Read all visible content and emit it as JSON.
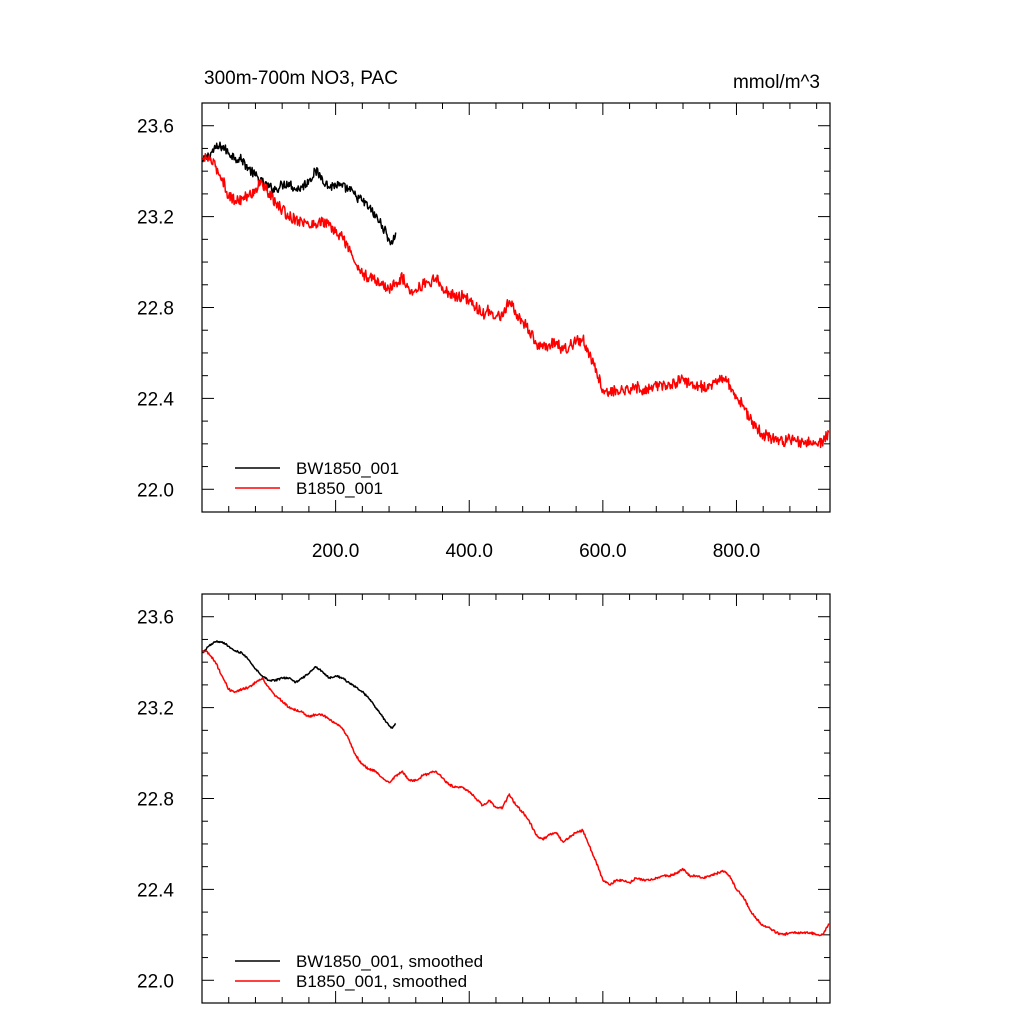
{
  "header": {
    "left_title": "300m-700m NO3, PAC",
    "right_title": "mmol/m^3"
  },
  "chart_data": [
    {
      "type": "line",
      "title": "300m-700m NO3, PAC",
      "units": "mmol/m^3",
      "xlim": [
        0,
        940
      ],
      "ylim": [
        21.9,
        23.7
      ],
      "x_ticks": [
        200,
        400,
        600,
        800
      ],
      "x_tick_labels": [
        "200.0",
        "400.0",
        "600.0",
        "800.0"
      ],
      "y_ticks": [
        22.0,
        22.4,
        22.8,
        23.2,
        23.6
      ],
      "y_tick_labels": [
        "22.0",
        "22.4",
        "22.8",
        "23.2",
        "23.6"
      ],
      "legend_position": "bottom-left",
      "grid": false,
      "series": [
        {
          "name": "BW1850_001",
          "color": "#000000",
          "x": [
            1,
            10,
            20,
            30,
            40,
            50,
            60,
            70,
            80,
            90,
            100,
            110,
            120,
            130,
            140,
            150,
            160,
            170,
            180,
            190,
            200,
            210,
            220,
            230,
            240,
            250,
            260,
            270,
            280,
            285,
            290
          ],
          "y": [
            23.44,
            23.47,
            23.5,
            23.51,
            23.48,
            23.46,
            23.45,
            23.41,
            23.38,
            23.35,
            23.33,
            23.32,
            23.34,
            23.35,
            23.32,
            23.33,
            23.36,
            23.4,
            23.37,
            23.33,
            23.34,
            23.33,
            23.32,
            23.29,
            23.27,
            23.24,
            23.2,
            23.16,
            23.1,
            23.08,
            23.13
          ],
          "noise": 0.022
        },
        {
          "name": "B1850_001",
          "color": "#ff0000",
          "x": [
            1,
            10,
            20,
            30,
            40,
            50,
            60,
            70,
            80,
            90,
            100,
            110,
            120,
            130,
            140,
            150,
            160,
            170,
            180,
            190,
            200,
            210,
            220,
            230,
            240,
            250,
            260,
            270,
            280,
            290,
            300,
            310,
            320,
            330,
            340,
            350,
            360,
            370,
            380,
            390,
            400,
            410,
            420,
            430,
            440,
            450,
            460,
            470,
            480,
            490,
            500,
            510,
            520,
            530,
            540,
            550,
            560,
            570,
            580,
            590,
            600,
            610,
            620,
            630,
            640,
            650,
            660,
            670,
            680,
            690,
            700,
            710,
            720,
            730,
            740,
            750,
            760,
            770,
            780,
            790,
            800,
            810,
            820,
            830,
            840,
            850,
            860,
            870,
            880,
            890,
            900,
            910,
            920,
            930,
            938
          ],
          "y": [
            23.45,
            23.46,
            23.42,
            23.37,
            23.29,
            23.27,
            23.28,
            23.29,
            23.32,
            23.35,
            23.3,
            23.26,
            23.23,
            23.2,
            23.19,
            23.18,
            23.16,
            23.17,
            23.18,
            23.16,
            23.13,
            23.11,
            23.06,
            22.99,
            22.95,
            22.93,
            22.92,
            22.9,
            22.88,
            22.91,
            22.93,
            22.88,
            22.88,
            22.9,
            22.91,
            22.93,
            22.89,
            22.86,
            22.85,
            22.85,
            22.83,
            22.8,
            22.77,
            22.79,
            22.76,
            22.76,
            22.83,
            22.77,
            22.74,
            22.7,
            22.64,
            22.62,
            22.64,
            22.65,
            22.61,
            22.63,
            22.65,
            22.66,
            22.59,
            22.53,
            22.44,
            22.42,
            22.44,
            22.44,
            22.43,
            22.45,
            22.44,
            22.44,
            22.45,
            22.46,
            22.46,
            22.47,
            22.49,
            22.46,
            22.46,
            22.45,
            22.46,
            22.47,
            22.49,
            22.46,
            22.4,
            22.37,
            22.31,
            22.27,
            22.24,
            22.23,
            22.21,
            22.21,
            22.22,
            22.21,
            22.21,
            22.21,
            22.2,
            22.21,
            22.25
          ],
          "noise": 0.025
        }
      ]
    },
    {
      "type": "line",
      "xlim": [
        0,
        940
      ],
      "ylim": [
        21.9,
        23.7
      ],
      "y_ticks": [
        22.0,
        22.4,
        22.8,
        23.2,
        23.6
      ],
      "y_tick_labels": [
        "22.0",
        "22.4",
        "22.8",
        "23.2",
        "23.6"
      ],
      "legend_position": "bottom-left",
      "grid": false,
      "series": [
        {
          "name": "BW1850_001, smoothed",
          "color": "#000000",
          "x": [
            1,
            10,
            20,
            30,
            40,
            50,
            60,
            70,
            80,
            90,
            100,
            110,
            120,
            130,
            140,
            150,
            160,
            170,
            180,
            190,
            200,
            210,
            220,
            230,
            240,
            250,
            260,
            270,
            280,
            285,
            290
          ],
          "y": [
            23.44,
            23.47,
            23.49,
            23.49,
            23.47,
            23.45,
            23.44,
            23.41,
            23.37,
            23.34,
            23.32,
            23.32,
            23.33,
            23.33,
            23.31,
            23.33,
            23.35,
            23.38,
            23.36,
            23.33,
            23.34,
            23.33,
            23.31,
            23.29,
            23.27,
            23.24,
            23.2,
            23.16,
            23.12,
            23.11,
            23.13
          ],
          "noise": 0.004
        },
        {
          "name": "B1850_001, smoothed",
          "color": "#ff0000",
          "x": [
            1,
            10,
            20,
            30,
            40,
            50,
            60,
            70,
            80,
            90,
            100,
            110,
            120,
            130,
            140,
            150,
            160,
            170,
            180,
            190,
            200,
            210,
            220,
            230,
            240,
            250,
            260,
            270,
            280,
            290,
            300,
            310,
            320,
            330,
            340,
            350,
            360,
            370,
            380,
            390,
            400,
            410,
            420,
            430,
            440,
            450,
            460,
            470,
            480,
            490,
            500,
            510,
            520,
            530,
            540,
            550,
            560,
            570,
            580,
            590,
            600,
            610,
            620,
            630,
            640,
            650,
            660,
            670,
            680,
            690,
            700,
            710,
            720,
            730,
            740,
            750,
            760,
            770,
            780,
            790,
            800,
            810,
            820,
            830,
            840,
            850,
            860,
            870,
            880,
            890,
            900,
            910,
            920,
            930,
            938
          ],
          "y": [
            23.45,
            23.44,
            23.4,
            23.34,
            23.28,
            23.27,
            23.28,
            23.29,
            23.31,
            23.33,
            23.29,
            23.25,
            23.23,
            23.2,
            23.19,
            23.18,
            23.16,
            23.17,
            23.17,
            23.15,
            23.13,
            23.11,
            23.06,
            22.99,
            22.95,
            22.93,
            22.92,
            22.89,
            22.87,
            22.9,
            22.92,
            22.88,
            22.88,
            22.9,
            22.91,
            22.92,
            22.89,
            22.86,
            22.85,
            22.85,
            22.83,
            22.8,
            22.77,
            22.79,
            22.76,
            22.76,
            22.82,
            22.77,
            22.74,
            22.7,
            22.64,
            22.62,
            22.64,
            22.65,
            22.61,
            22.63,
            22.65,
            22.66,
            22.59,
            22.52,
            22.44,
            22.42,
            22.44,
            22.44,
            22.43,
            22.45,
            22.44,
            22.44,
            22.45,
            22.46,
            22.46,
            22.47,
            22.49,
            22.46,
            22.46,
            22.45,
            22.46,
            22.47,
            22.48,
            22.46,
            22.4,
            22.37,
            22.31,
            22.27,
            22.24,
            22.23,
            22.21,
            22.2,
            22.21,
            22.21,
            22.21,
            22.21,
            22.2,
            22.2,
            22.25
          ],
          "noise": 0.005
        }
      ]
    }
  ]
}
